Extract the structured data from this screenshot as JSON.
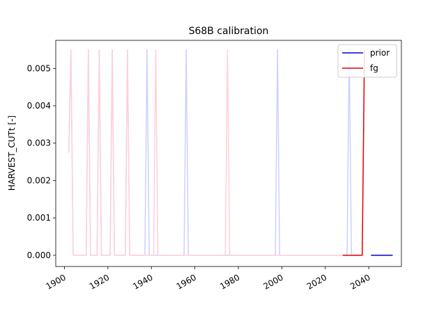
{
  "chart_data": {
    "type": "line",
    "title": "S68B calibration",
    "xlabel": "",
    "ylabel": "HARVEST_CUTt [-]",
    "xlim": [
      1896,
      2055
    ],
    "ylim": [
      -0.0003,
      0.00575
    ],
    "x_ticks": [
      1900,
      1920,
      1940,
      1960,
      1980,
      2000,
      2020,
      2040
    ],
    "y_ticks": [
      0.0,
      0.001,
      0.002,
      0.003,
      0.004,
      0.005
    ],
    "y_tick_labels": [
      "0.000",
      "0.001",
      "0.002",
      "0.003",
      "0.004",
      "0.005"
    ],
    "grid": false,
    "legend_position": "top-right",
    "legend": [
      {
        "label": "prior",
        "color": "#0000cc"
      },
      {
        "label": "fg",
        "color": "#e00000"
      }
    ],
    "series": [
      {
        "name": "prior (faded)",
        "color": "#ccd0ff",
        "x": [
          1902,
          1903,
          1904,
          1910,
          1911,
          1912,
          1915,
          1916,
          1917,
          1921,
          1922,
          1923,
          1928,
          1929,
          1930,
          1937,
          1938,
          1939,
          1955,
          1956,
          1957,
          1997,
          1998,
          1999,
          2030,
          2031,
          2032,
          2036
        ],
        "y": [
          0.00275,
          0.0055,
          0,
          0,
          0.0055,
          0,
          0,
          0.0055,
          0,
          0,
          0.0055,
          0,
          0,
          0.0055,
          0,
          0,
          0.0055,
          0,
          0,
          0.0055,
          0,
          0,
          0.0055,
          0,
          0,
          0.0055,
          0,
          0
        ]
      },
      {
        "name": "fg (faded)",
        "color": "#ffd0d8",
        "x": [
          1902,
          1903,
          1904,
          1910,
          1911,
          1912,
          1915,
          1916,
          1917,
          1921,
          1922,
          1923,
          1928,
          1929,
          1930,
          1941,
          1942,
          1943,
          1974,
          1975,
          1976,
          2030
        ],
        "y": [
          0.00275,
          0.0055,
          0,
          0,
          0.0055,
          0,
          0,
          0.0055,
          0,
          0,
          0.0055,
          0,
          0,
          0.0055,
          0,
          0,
          0.0055,
          0,
          0,
          0.0055,
          0,
          0
        ]
      },
      {
        "name": "prior",
        "color": "#0000cc",
        "x": [
          2041,
          2051
        ],
        "y": [
          0,
          0
        ]
      },
      {
        "name": "fg",
        "color": "#e00000",
        "x": [
          2028,
          2037,
          2038
        ],
        "y": [
          0,
          0,
          0.0055
        ]
      }
    ]
  }
}
